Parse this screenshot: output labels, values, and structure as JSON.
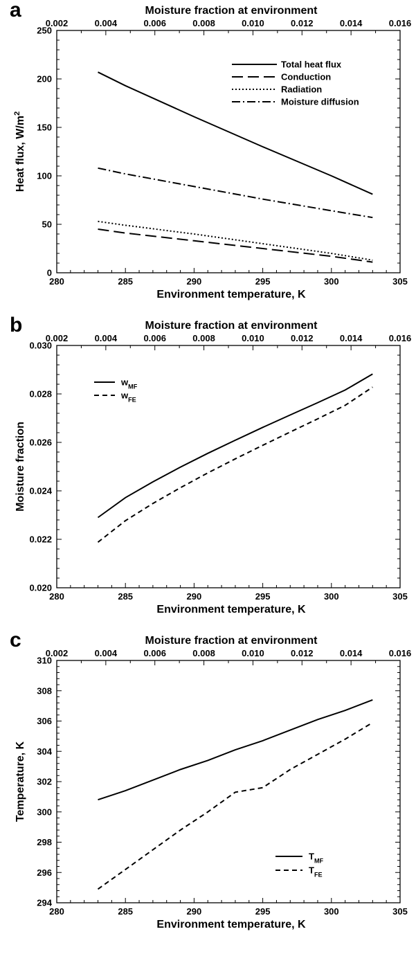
{
  "chart_data": [
    {
      "panel": "a",
      "type": "line",
      "xlabel": "Environment temperature, K",
      "x2label": "Moisture fraction at environment",
      "ylabel": "Heat flux, W/m",
      "ylabel_sup": "2",
      "xlim": [
        280,
        305
      ],
      "x2lim": [
        0.002,
        0.016
      ],
      "ylim": [
        0,
        250
      ],
      "xticks": [
        "280",
        "285",
        "290",
        "295",
        "300",
        "305"
      ],
      "x2ticks": [
        "0.002",
        "0.004",
        "0.006",
        "0.008",
        "0.010",
        "0.012",
        "0.014",
        "0.016"
      ],
      "yticks": [
        "0",
        "50",
        "100",
        "150",
        "200",
        "250"
      ],
      "legend_position": "top-right",
      "series": [
        {
          "name": "Total heat flux",
          "style": "solid",
          "x": [
            283,
            285,
            290,
            295,
            300,
            303
          ],
          "y": [
            207,
            193,
            161,
            130,
            100,
            81
          ]
        },
        {
          "name": "Conduction",
          "style": "long-dash",
          "x": [
            283,
            285,
            290,
            295,
            300,
            303
          ],
          "y": [
            45,
            41,
            33,
            25,
            17,
            11
          ]
        },
        {
          "name": "Radiation",
          "style": "dotted",
          "x": [
            283,
            285,
            290,
            295,
            300,
            303
          ],
          "y": [
            53,
            49,
            40,
            30,
            20,
            13
          ]
        },
        {
          "name": "Moisture diffusion",
          "style": "dash-dot",
          "x": [
            283,
            285,
            290,
            295,
            300,
            303
          ],
          "y": [
            108,
            102,
            89,
            76,
            64,
            57
          ]
        }
      ]
    },
    {
      "panel": "b",
      "type": "line",
      "xlabel": "Environment temperature, K",
      "x2label": "Moisture fraction at environment",
      "ylabel": "Moisture fraction",
      "xlim": [
        280,
        305
      ],
      "x2lim": [
        0.002,
        0.016
      ],
      "ylim": [
        0.02,
        0.03
      ],
      "xticks": [
        "280",
        "285",
        "290",
        "295",
        "300",
        "305"
      ],
      "x2ticks": [
        "0.002",
        "0.004",
        "0.006",
        "0.008",
        "0.010",
        "0.012",
        "0.014",
        "0.016"
      ],
      "yticks": [
        "0.020",
        "0.022",
        "0.024",
        "0.026",
        "0.028",
        "0.030"
      ],
      "legend_position": "top-left",
      "series": [
        {
          "name": "w",
          "sub": "MF",
          "style": "solid",
          "x": [
            283,
            285,
            287,
            289,
            291,
            293,
            295,
            297,
            299,
            301,
            303
          ],
          "y": [
            0.0229,
            0.02372,
            0.02437,
            0.02498,
            0.02555,
            0.02609,
            0.02662,
            0.02713,
            0.02764,
            0.02816,
            0.02882
          ]
        },
        {
          "name": "w",
          "sub": "FE",
          "style": "dashed",
          "x": [
            283,
            285,
            287,
            289,
            291,
            293,
            295,
            297,
            299,
            301,
            303
          ],
          "y": [
            0.02188,
            0.02277,
            0.02348,
            0.02413,
            0.02474,
            0.02532,
            0.02588,
            0.02643,
            0.02697,
            0.02753,
            0.02828
          ]
        }
      ]
    },
    {
      "panel": "c",
      "type": "line",
      "xlabel": "Environment temperature, K",
      "x2label": "Moisture fraction at environment",
      "ylabel": "Temperature, K",
      "xlim": [
        280,
        305
      ],
      "x2lim": [
        0.002,
        0.016
      ],
      "ylim": [
        294,
        310
      ],
      "xticks": [
        "280",
        "285",
        "290",
        "295",
        "300",
        "305"
      ],
      "x2ticks": [
        "0.002",
        "0.004",
        "0.006",
        "0.008",
        "0.010",
        "0.012",
        "0.014",
        "0.016"
      ],
      "yticks": [
        "294",
        "296",
        "298",
        "300",
        "302",
        "304",
        "306",
        "308",
        "310"
      ],
      "legend_position": "bottom-right",
      "series": [
        {
          "name": "T",
          "sub": "MF",
          "style": "solid",
          "x": [
            283,
            285,
            287,
            289,
            291,
            293,
            295,
            297,
            299,
            301,
            303
          ],
          "y": [
            300.8,
            301.4,
            302.1,
            302.8,
            303.4,
            304.1,
            304.7,
            305.4,
            306.1,
            306.7,
            307.4
          ]
        },
        {
          "name": "T",
          "sub": "FE",
          "style": "dashed",
          "x": [
            283,
            285,
            287,
            289,
            291,
            293,
            295,
            297,
            299,
            301,
            303
          ],
          "y": [
            294.9,
            296.2,
            297.5,
            298.8,
            300.0,
            301.3,
            301.6,
            302.8,
            303.8,
            304.8,
            305.9
          ]
        }
      ]
    }
  ]
}
